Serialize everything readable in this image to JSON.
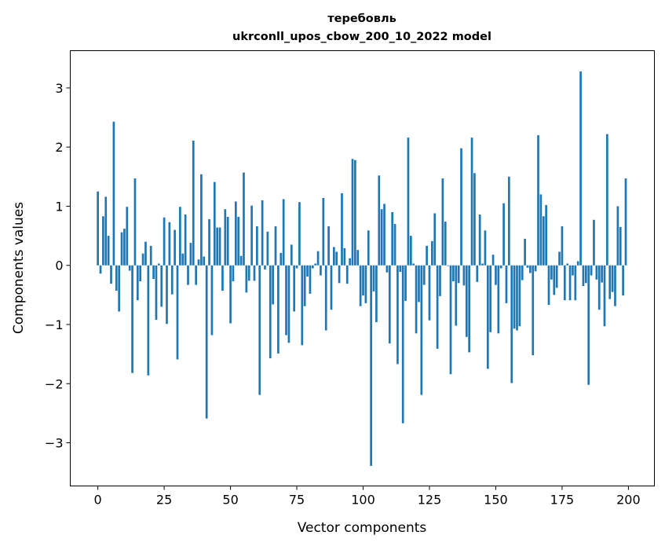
{
  "chart_data": {
    "type": "bar",
    "title_line1": "теребовль",
    "title_line2": "ukrconll_upos_cbow_200_10_2022 model",
    "xlabel": "Vector components",
    "ylabel": "Components values",
    "xlim": [
      -10.4,
      209.8
    ],
    "ylim": [
      -3.73,
      3.63
    ],
    "xticks": [
      0,
      25,
      50,
      75,
      100,
      125,
      150,
      175,
      200
    ],
    "yticks": [
      -3,
      -2,
      -1,
      0,
      1,
      2,
      3
    ],
    "ytick_labels": [
      "−3",
      "−2",
      "−1",
      "0",
      "1",
      "2",
      "3"
    ],
    "grid": false,
    "bar_color": "#1f77b4",
    "values": [
      1.25,
      -0.14,
      0.83,
      1.16,
      0.5,
      -0.31,
      2.43,
      -0.43,
      -0.78,
      0.56,
      0.62,
      0.99,
      -0.09,
      -1.82,
      1.47,
      -0.59,
      -0.27,
      0.2,
      0.4,
      -1.86,
      0.33,
      -0.23,
      -0.92,
      0.03,
      -0.7,
      0.81,
      -0.99,
      0.73,
      -0.49,
      0.6,
      -1.59,
      0.99,
      0.2,
      0.86,
      -0.33,
      0.38,
      2.11,
      -0.33,
      0.1,
      1.54,
      0.15,
      -2.59,
      0.78,
      -1.18,
      1.41,
      0.64,
      0.64,
      -0.43,
      0.95,
      0.82,
      -0.98,
      -0.27,
      1.08,
      0.82,
      0.16,
      1.57,
      -0.46,
      -0.26,
      1.01,
      -0.26,
      0.66,
      -2.19,
      1.1,
      -0.07,
      0.57,
      -1.57,
      -0.66,
      0.66,
      -1.49,
      0.21,
      1.12,
      -1.18,
      -1.31,
      0.35,
      -0.78,
      -0.05,
      1.07,
      -1.35,
      -0.69,
      -0.19,
      -0.48,
      -0.05,
      0.03,
      0.24,
      -0.17,
      1.14,
      -1.1,
      0.66,
      -0.75,
      0.31,
      0.23,
      -0.3,
      1.22,
      0.29,
      -0.31,
      0.12,
      1.8,
      1.78,
      0.26,
      -0.69,
      -0.51,
      -0.64,
      0.59,
      -3.39,
      -0.44,
      -0.96,
      1.52,
      0.95,
      1.04,
      -0.12,
      -1.32,
      0.9,
      0.7,
      -1.67,
      -0.11,
      -2.67,
      -0.6,
      2.16,
      0.5,
      0.03,
      -1.15,
      -0.62,
      -2.19,
      -0.33,
      0.33,
      -0.93,
      0.41,
      0.88,
      -1.41,
      -0.52,
      1.47,
      0.74,
      -0.01,
      -1.84,
      -0.27,
      -1.02,
      -0.3,
      1.98,
      -0.34,
      -1.21,
      -1.47,
      2.16,
      1.56,
      -0.28,
      0.86,
      0.03,
      0.59,
      -1.75,
      -1.13,
      0.18,
      -0.33,
      -1.15,
      -0.05,
      1.05,
      -0.64,
      1.5,
      -1.99,
      -1.07,
      -1.1,
      -1.03,
      -0.25,
      0.45,
      -0.04,
      -0.13,
      -1.52,
      -0.1,
      2.2,
      1.2,
      0.83,
      1.02,
      -0.67,
      -0.24,
      -0.5,
      -0.38,
      0.23,
      0.66,
      -0.59,
      0.03,
      -0.59,
      -0.17,
      -0.59,
      0.07,
      3.28,
      -0.35,
      -0.3,
      -2.02,
      -0.17,
      0.77,
      -0.24,
      -0.75,
      -0.29,
      -1.03,
      2.22,
      -0.57,
      -0.45,
      -0.69,
      1.0,
      0.65,
      -0.51,
      1.47
    ]
  }
}
